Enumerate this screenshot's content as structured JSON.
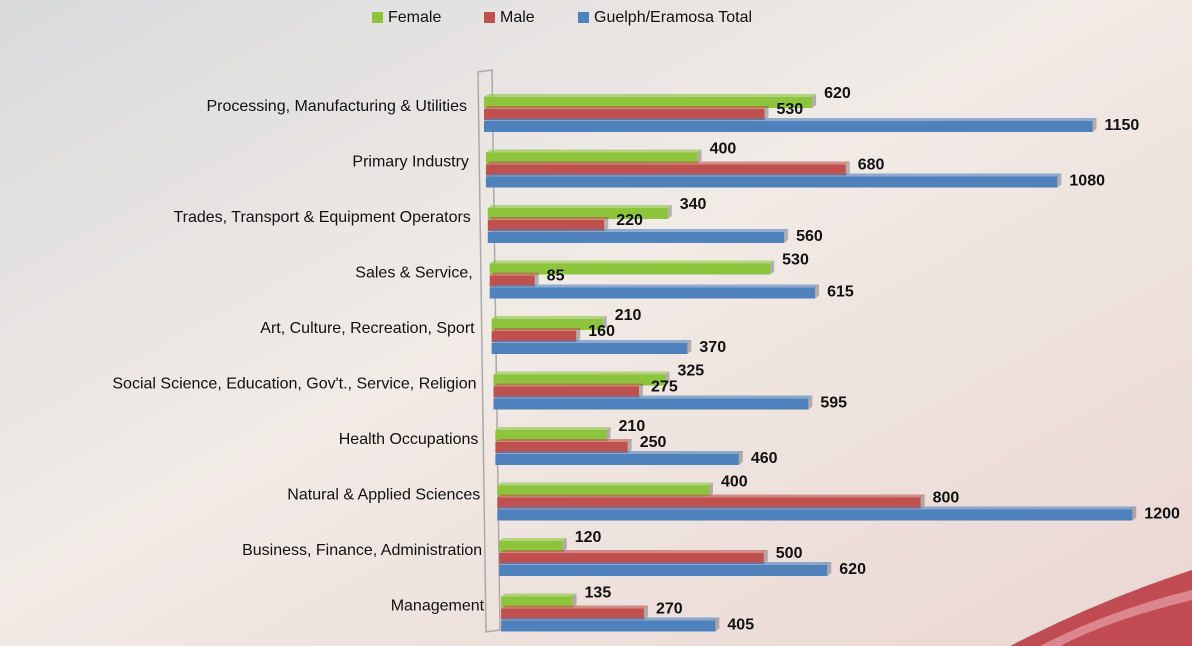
{
  "chart_data": {
    "type": "bar",
    "orientation": "horizontal",
    "categories": [
      "Processing, Manufacturing & Utilities",
      "Primary Industry",
      "Trades, Transport & Equipment Operators",
      "Sales & Service,",
      "Art, Culture, Recreation, Sport",
      "Social Science, Education,  Gov't., Service, Religion",
      "Health Occupations",
      "Natural & Applied Sciences",
      "Business, Finance, Administration",
      "Management"
    ],
    "series": [
      {
        "name": "Female",
        "color": "#8cc43c",
        "values": [
          620,
          400,
          340,
          530,
          210,
          325,
          210,
          400,
          120,
          135
        ]
      },
      {
        "name": "Male",
        "color": "#c0504d",
        "values": [
          530,
          680,
          220,
          85,
          160,
          275,
          250,
          800,
          500,
          270
        ]
      },
      {
        "name": "Guelph/Eramosa Total",
        "color": "#4f81bd",
        "values": [
          1150,
          1080,
          560,
          615,
          370,
          595,
          460,
          1200,
          620,
          405
        ]
      }
    ],
    "legend": "top"
  }
}
